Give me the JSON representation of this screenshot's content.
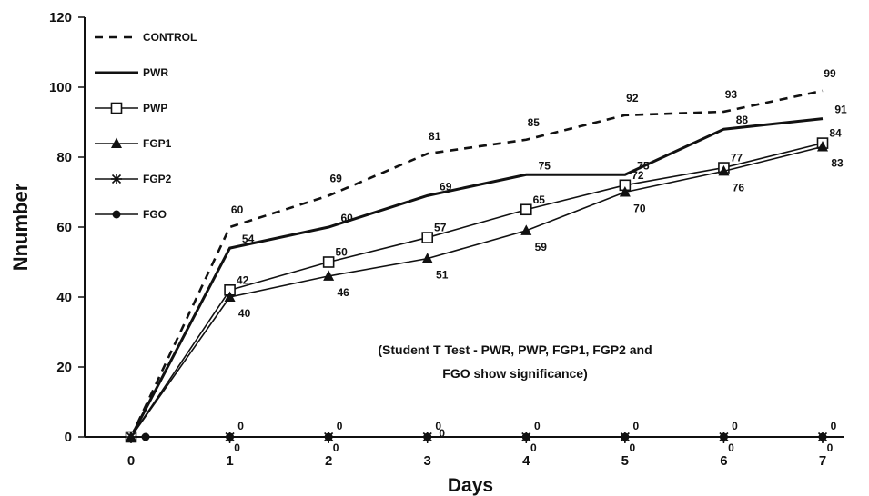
{
  "chart_data": {
    "type": "line",
    "xlabel": "Days",
    "ylabel": "Nnumber",
    "x": [
      0,
      1,
      2,
      3,
      4,
      5,
      6,
      7
    ],
    "xlim": [
      0,
      7
    ],
    "ylim": [
      0,
      120
    ],
    "yticks": [
      0,
      20,
      40,
      60,
      80,
      100,
      120
    ],
    "grid": false,
    "legend_position": "top-left",
    "series": [
      {
        "name": "CONTROL",
        "values": [
          0,
          60,
          69,
          81,
          85,
          92,
          93,
          99
        ],
        "style": "dashed",
        "marker": "none",
        "labels": [
          "",
          "60",
          "69",
          "81",
          "85",
          "92",
          "93",
          "99"
        ]
      },
      {
        "name": "PWR",
        "values": [
          0,
          54,
          60,
          69,
          75,
          75,
          88,
          91
        ],
        "style": "solid-thick",
        "marker": "none",
        "labels": [
          "",
          "54",
          "60",
          "69",
          "75",
          "75",
          "88",
          "91"
        ]
      },
      {
        "name": "PWP",
        "values": [
          0,
          42,
          50,
          57,
          65,
          72,
          77,
          84
        ],
        "style": "solid",
        "marker": "square",
        "labels": [
          "",
          "42",
          "50",
          "57",
          "65",
          "72",
          "77",
          "84"
        ]
      },
      {
        "name": "FGP1",
        "values": [
          0,
          40,
          46,
          51,
          59,
          70,
          76,
          83
        ],
        "style": "solid",
        "marker": "triangle",
        "labels": [
          "",
          "40",
          "46",
          "51",
          "59",
          "70",
          "76",
          "83"
        ]
      },
      {
        "name": "FGP2",
        "values": [
          0,
          0,
          0,
          0,
          0,
          0,
          0,
          0
        ],
        "style": "solid",
        "marker": "star",
        "labels": [
          "",
          "0",
          "0",
          "0",
          "0",
          "0",
          "0",
          "0"
        ]
      },
      {
        "name": "FGO",
        "values": [
          0,
          0,
          0,
          0,
          0,
          0,
          0,
          0
        ],
        "style": "solid",
        "marker": "circle",
        "labels": [
          "",
          "0",
          "0",
          "0",
          "0",
          "0",
          "0",
          "0"
        ]
      }
    ],
    "annotation": [
      "(Student T Test - PWR, PWP, FGP1, FGP2 and",
      "FGO show significance)"
    ]
  }
}
